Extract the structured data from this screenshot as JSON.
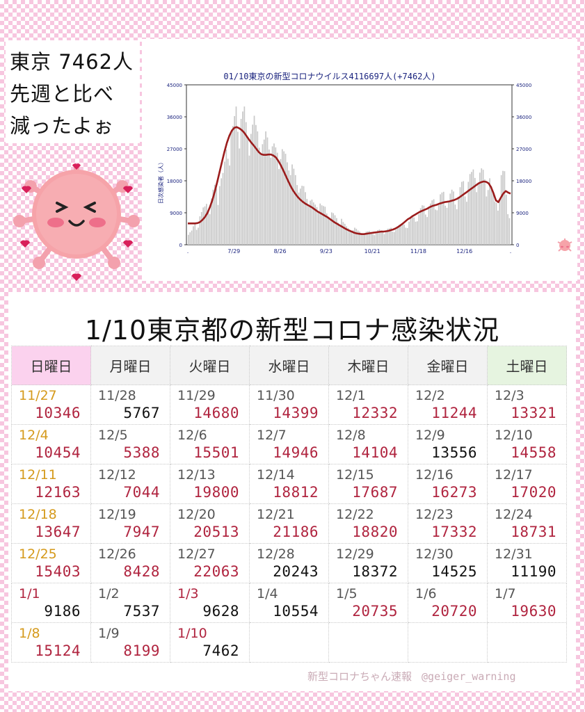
{
  "bubble": {
    "lines": [
      "東京 7462人",
      "先週と比べ",
      "減ったよぉ"
    ]
  },
  "chart_data": {
    "type": "bar",
    "title": "01/10東京の新型コロナウイルス4116697人(+7462人)",
    "ylabel": "日次感染者（人）",
    "ylim": [
      0,
      45000
    ],
    "yticks": [
      0,
      9000,
      18000,
      27000,
      36000,
      45000
    ],
    "x_labels": [
      ".",
      "7/29",
      "8/26",
      "9/23",
      "10/21",
      "11/18",
      "12/16",
      "."
    ],
    "series": [
      {
        "type": "bar",
        "values": [
          2800,
          3500,
          4000,
          5200,
          6000,
          4200,
          4800,
          8000,
          9200,
          10500,
          10800,
          11500,
          9800,
          8600,
          13000,
          15500,
          16900,
          15800,
          11200,
          16500,
          18700,
          20200,
          23400,
          26800,
          24200,
          22300,
          31500,
          33400,
          36200,
          38900,
          31800,
          27100,
          35400,
          37500,
          38900,
          34500,
          30400,
          25100,
          31200,
          33800,
          36300,
          33700,
          31900,
          27300,
          25700,
          28300,
          29600,
          31900,
          30200,
          26800,
          24500,
          27700,
          28500,
          27400,
          25900,
          21300,
          24100,
          26900,
          26300,
          25600,
          23200,
          20900,
          19600,
          22600,
          21400,
          19600,
          16800,
          14700,
          15800,
          16600,
          16500,
          14800,
          12900,
          10700,
          12400,
          12700,
          11900,
          11300,
          10600,
          9400,
          11600,
          11100,
          10900,
          10700,
          8800,
          7700,
          7200,
          9100,
          8900,
          8300,
          7500,
          6200,
          5600,
          7300,
          6400,
          5900,
          5200,
          4700,
          4200,
          3700,
          4100,
          4800,
          4500,
          4000,
          3700,
          3300,
          2900,
          3200,
          3700,
          3800,
          3900,
          3600,
          3000,
          2700,
          3700,
          4100,
          4300,
          4000,
          3500,
          3000,
          3900,
          4500,
          4600,
          4800,
          3700,
          3600,
          4200,
          5000,
          5600,
          5700,
          5800,
          5700,
          4800,
          4700,
          6500,
          7400,
          7800,
          7700,
          6500,
          6600,
          8600,
          10300,
          11100,
          11000,
          8500,
          7800,
          10200,
          11600,
          12500,
          12800,
          9900,
          9700,
          11200,
          14200,
          14700,
          14900,
          11000,
          10400,
          12300,
          14400,
          15500,
          15000,
          11300,
          10000,
          13500,
          16200,
          17700,
          17900,
          13600,
          12100,
          17700,
          19900,
          20500,
          21200,
          18800,
          14800,
          17300,
          20300,
          21500,
          21100,
          18400,
          13600,
          15400,
          18700,
          16500,
          15000,
          12200,
          11800,
          9600,
          12300,
          19600,
          20800,
          20700,
          14100,
          8600,
          7500
        ],
        "color": "#c8c8c8"
      },
      {
        "type": "line",
        "name": "",
        "values": [
          6000,
          6000,
          6000,
          6000,
          6100,
          6400,
          7000,
          7800,
          8900,
          10500,
          12500,
          14900,
          17600,
          20500,
          23400,
          26200,
          28700,
          30700,
          32100,
          32900,
          33100,
          32800,
          32300,
          31600,
          30600,
          29600,
          28700,
          27900,
          27000,
          26100,
          25500,
          25300,
          25300,
          25400,
          25400,
          25100,
          24600,
          23600,
          22400,
          21000,
          19500,
          18000,
          16600,
          15300,
          14300,
          13400,
          12700,
          12100,
          11600,
          11200,
          10800,
          10400,
          9900,
          9400,
          9000,
          8600,
          8200,
          7800,
          7300,
          6800,
          6300,
          5900,
          5500,
          5100,
          4700,
          4300,
          4000,
          3700,
          3400,
          3200,
          3100,
          3000,
          3000,
          3100,
          3200,
          3300,
          3400,
          3500,
          3600,
          3700,
          3700,
          3800,
          3900,
          4100,
          4300,
          4600,
          5000,
          5500,
          6000,
          6600,
          7200,
          7600,
          8100,
          8500,
          8900,
          9300,
          9600,
          9900,
          10200,
          10600,
          10900,
          11100,
          11300,
          11600,
          11800,
          12000,
          12100,
          12200,
          12400,
          12600,
          12900,
          13300,
          13800,
          14300,
          14800,
          15300,
          15800,
          16300,
          16800,
          17300,
          17600,
          17800,
          17700,
          17300,
          16200,
          14500,
          12500,
          12000,
          13200,
          14400,
          15100,
          14700,
          14400
        ]
      }
    ],
    "grid": false
  },
  "table": {
    "title": "1/10東京都の新型コロナ感染状況",
    "headers": [
      "日曜日",
      "月曜日",
      "火曜日",
      "水曜日",
      "木曜日",
      "金曜日",
      "土曜日"
    ],
    "weeks": [
      [
        {
          "date": "11/27",
          "value": "10346"
        },
        {
          "date": "11/28",
          "value": "5767"
        },
        {
          "date": "11/29",
          "value": "14680"
        },
        {
          "date": "11/30",
          "value": "14399"
        },
        {
          "date": "12/1",
          "value": "12332"
        },
        {
          "date": "12/2",
          "value": "11244"
        },
        {
          "date": "12/3",
          "value": "13321"
        }
      ],
      [
        {
          "date": "12/4",
          "value": "10454"
        },
        {
          "date": "12/5",
          "value": "5388"
        },
        {
          "date": "12/6",
          "value": "15501"
        },
        {
          "date": "12/7",
          "value": "14946"
        },
        {
          "date": "12/8",
          "value": "14104"
        },
        {
          "date": "12/9",
          "value": "13556"
        },
        {
          "date": "12/10",
          "value": "14558"
        }
      ],
      [
        {
          "date": "12/11",
          "value": "12163"
        },
        {
          "date": "12/12",
          "value": "7044"
        },
        {
          "date": "12/13",
          "value": "19800"
        },
        {
          "date": "12/14",
          "value": "18812"
        },
        {
          "date": "12/15",
          "value": "17687"
        },
        {
          "date": "12/16",
          "value": "16273"
        },
        {
          "date": "12/17",
          "value": "17020"
        }
      ],
      [
        {
          "date": "12/18",
          "value": "13647"
        },
        {
          "date": "12/19",
          "value": "7947"
        },
        {
          "date": "12/20",
          "value": "20513"
        },
        {
          "date": "12/21",
          "value": "21186"
        },
        {
          "date": "12/22",
          "value": "18820"
        },
        {
          "date": "12/23",
          "value": "17332"
        },
        {
          "date": "12/24",
          "value": "18731"
        }
      ],
      [
        {
          "date": "12/25",
          "value": "15403"
        },
        {
          "date": "12/26",
          "value": "8428"
        },
        {
          "date": "12/27",
          "value": "22063"
        },
        {
          "date": "12/28",
          "value": "20243"
        },
        {
          "date": "12/29",
          "value": "18372"
        },
        {
          "date": "12/30",
          "value": "14525"
        },
        {
          "date": "12/31",
          "value": "11190"
        }
      ],
      [
        {
          "date": "1/1",
          "value": "9186"
        },
        {
          "date": "1/2",
          "value": "7537"
        },
        {
          "date": "1/3",
          "value": "9628"
        },
        {
          "date": "1/4",
          "value": "10554"
        },
        {
          "date": "1/5",
          "value": "20735"
        },
        {
          "date": "1/6",
          "value": "20720"
        },
        {
          "date": "1/7",
          "value": "19630"
        }
      ],
      [
        {
          "date": "1/8",
          "value": "15124"
        },
        {
          "date": "1/9",
          "value": "8199"
        },
        {
          "date": "1/10",
          "value": "7462"
        },
        {
          "date": "",
          "value": ""
        },
        {
          "date": "",
          "value": ""
        },
        {
          "date": "",
          "value": ""
        },
        {
          "date": "",
          "value": ""
        }
      ]
    ],
    "colors": {
      "up": "#b0243f",
      "down": "#111111",
      "sunday_date": "#d59a1c",
      "holiday_date": "#b0243f"
    }
  },
  "footer": {
    "brand": "新型コロナちゃん速報",
    "handle": "@geiger_warning"
  }
}
